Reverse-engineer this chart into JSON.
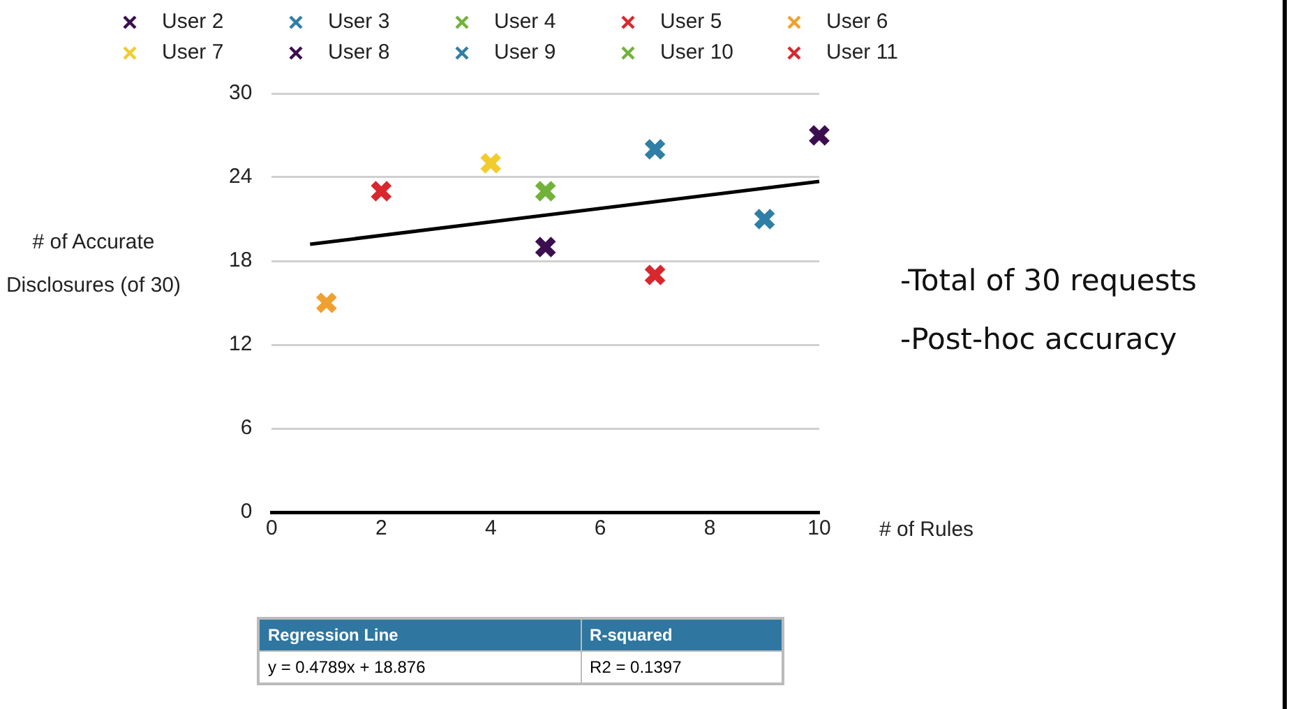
{
  "chart_data": {
    "type": "scatter",
    "xlabel": "# of Rules",
    "ylabel": "# of Accurate Disclosures (of 30)",
    "xlim": [
      0,
      10
    ],
    "xticks": [
      0,
      2,
      4,
      6,
      8,
      10
    ],
    "ylim": [
      0,
      30
    ],
    "yticks": [
      0,
      6,
      12,
      18,
      24,
      30
    ],
    "grid": "y",
    "legend": "top",
    "marker": "cross",
    "series": [
      {
        "name": "User 2",
        "color": "#3b0f4f",
        "x": [
          5
        ],
        "values": [
          19
        ]
      },
      {
        "name": "User 3",
        "color": "#2f7ea6",
        "x": [
          7
        ],
        "values": [
          26
        ]
      },
      {
        "name": "User 4",
        "color": "#72b23a",
        "x": [
          5
        ],
        "values": [
          23
        ]
      },
      {
        "name": "User 5",
        "color": "#d9272e",
        "x": [
          2
        ],
        "values": [
          23
        ]
      },
      {
        "name": "User 6",
        "color": "#f0a030",
        "x": [
          1
        ],
        "values": [
          15
        ]
      },
      {
        "name": "User 7",
        "color": "#f2cc2c",
        "x": [
          4
        ],
        "values": [
          25
        ]
      },
      {
        "name": "User 8",
        "color": "#3b0f4f",
        "x": [
          10
        ],
        "values": [
          27
        ]
      },
      {
        "name": "User 9",
        "color": "#2f7ea6",
        "x": [
          9
        ],
        "values": [
          21
        ]
      },
      {
        "name": "User 10",
        "color": "#72b23a"
      },
      {
        "name": "User 11",
        "color": "#d9272e",
        "x": [
          7
        ],
        "values": [
          17
        ]
      },
      {
        "type": "line",
        "color": "#000000",
        "marker": "none",
        "x": [
          0.7,
          10
        ],
        "values": [
          19.2,
          23.7
        ]
      }
    ],
    "annotations": [
      "-Total of 30 requests",
      "-Post-hoc accuracy",
      "Regression Line",
      "R-squared",
      "y = 0.4789x + 18.876",
      "R2 = 0.1397"
    ]
  }
}
